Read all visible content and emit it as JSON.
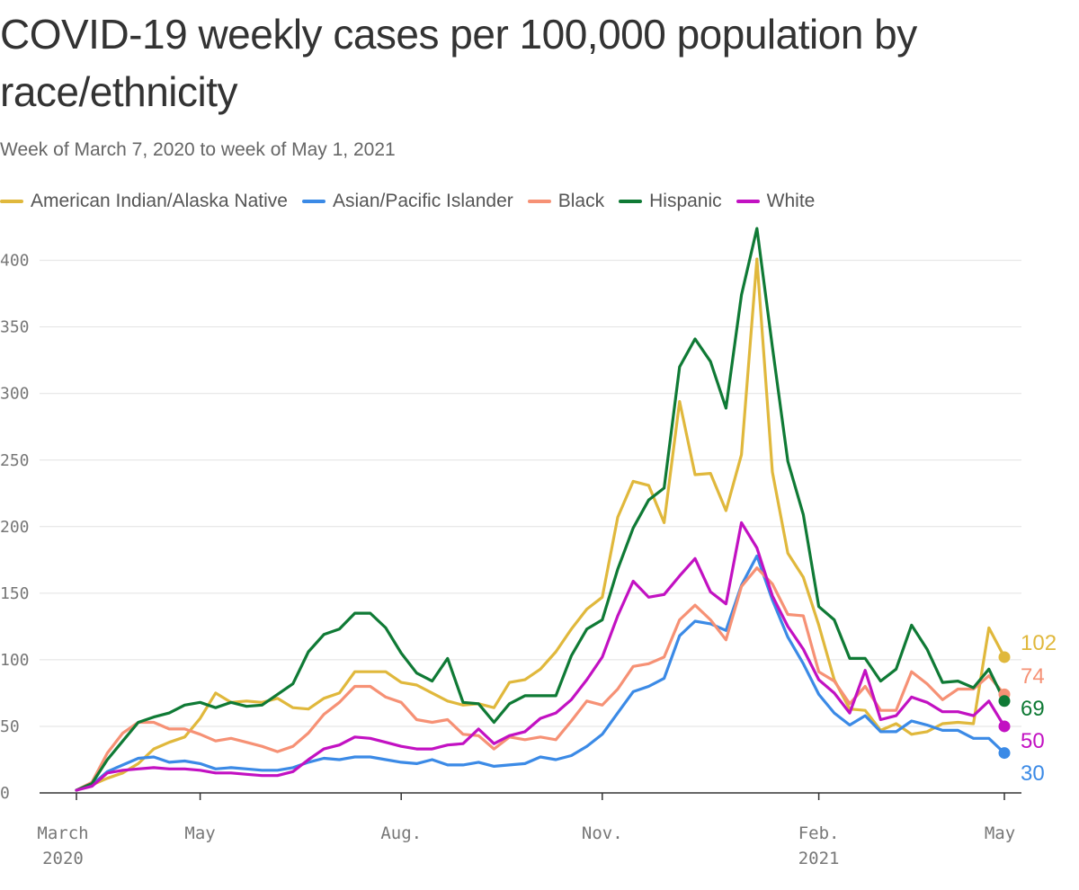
{
  "title": "COVID-19 weekly cases per 100,000 population by race/ethnicity",
  "subtitle": "Week of March 7, 2020 to week of May 1, 2021",
  "chart_data": {
    "type": "line",
    "title": "COVID-19 weekly cases per 100,000 population by race/ethnicity",
    "subtitle": "Week of March 7, 2020 to week of May 1, 2021",
    "xlabel": "",
    "ylabel": "",
    "ylim": [
      0,
      420
    ],
    "grid": true,
    "legend_placement": "top",
    "y_ticks": [
      "0",
      "50",
      "100",
      "150",
      "200",
      "250",
      "300",
      "350",
      "400"
    ],
    "x_ticks": [
      {
        "week": 0,
        "label": "March",
        "sublabel": "2020"
      },
      {
        "week": 8,
        "label": "May",
        "sublabel": ""
      },
      {
        "week": 21,
        "label": "Aug.",
        "sublabel": ""
      },
      {
        "week": 34,
        "label": "Nov.",
        "sublabel": ""
      },
      {
        "week": 48,
        "label": "Feb.",
        "sublabel": "2021"
      },
      {
        "week": 60,
        "label": "May",
        "sublabel": ""
      }
    ],
    "series": [
      {
        "name": "American Indian/Alaska Native",
        "color": "#e0b83c",
        "end_label": "102",
        "values": [
          2,
          6,
          11,
          15,
          22,
          33,
          38,
          42,
          56,
          75,
          68,
          69,
          68,
          71,
          64,
          63,
          71,
          75,
          91,
          91,
          91,
          83,
          81,
          75,
          69,
          66,
          67,
          64,
          83,
          85,
          93,
          106,
          123,
          138,
          147,
          207,
          234,
          231,
          203,
          294,
          239,
          240,
          212,
          254,
          401,
          241,
          180,
          162,
          126,
          85,
          63,
          62,
          47,
          52,
          44,
          46,
          52,
          53,
          52,
          124,
          102
        ]
      },
      {
        "name": "Asian/Pacific Islander",
        "color": "#3b8ae6",
        "end_label": "30",
        "values": [
          2,
          6,
          16,
          21,
          26,
          27,
          23,
          24,
          22,
          18,
          19,
          18,
          17,
          17,
          19,
          23,
          26,
          25,
          27,
          27,
          25,
          23,
          22,
          25,
          21,
          21,
          23,
          20,
          21,
          22,
          27,
          25,
          28,
          35,
          44,
          60,
          76,
          80,
          86,
          118,
          129,
          127,
          122,
          156,
          178,
          145,
          117,
          97,
          74,
          60,
          51,
          58,
          46,
          46,
          54,
          51,
          47,
          47,
          41,
          41,
          30
        ]
      },
      {
        "name": "Black",
        "color": "#f69175",
        "end_label": "74",
        "values": [
          2,
          8,
          30,
          45,
          53,
          53,
          48,
          48,
          44,
          39,
          41,
          38,
          35,
          31,
          35,
          45,
          59,
          68,
          80,
          80,
          72,
          68,
          55,
          53,
          55,
          44,
          43,
          33,
          42,
          40,
          42,
          40,
          54,
          69,
          66,
          78,
          95,
          97,
          102,
          130,
          141,
          130,
          115,
          155,
          169,
          157,
          134,
          133,
          91,
          84,
          67,
          80,
          62,
          62,
          91,
          82,
          70,
          78,
          78,
          88,
          74
        ]
      },
      {
        "name": "Hispanic",
        "color": "#0f7a35",
        "end_label": "69",
        "values": [
          2,
          7,
          25,
          39,
          53,
          57,
          60,
          66,
          68,
          64,
          68,
          65,
          66,
          74,
          82,
          106,
          119,
          123,
          135,
          135,
          124,
          105,
          90,
          84,
          101,
          68,
          67,
          53,
          67,
          73,
          73,
          73,
          103,
          123,
          130,
          168,
          199,
          220,
          229,
          320,
          341,
          324,
          289,
          374,
          424,
          335,
          249,
          209,
          140,
          130,
          101,
          101,
          84,
          93,
          126,
          108,
          83,
          84,
          79,
          93,
          69
        ]
      },
      {
        "name": "White",
        "color": "#c211c2",
        "end_label": "50",
        "values": [
          2,
          5,
          15,
          17,
          18,
          19,
          18,
          18,
          17,
          15,
          15,
          14,
          13,
          13,
          16,
          25,
          33,
          36,
          42,
          41,
          38,
          35,
          33,
          33,
          36,
          37,
          48,
          37,
          43,
          46,
          56,
          60,
          70,
          85,
          102,
          133,
          159,
          147,
          149,
          163,
          176,
          151,
          142,
          203,
          184,
          148,
          125,
          108,
          85,
          75,
          60,
          92,
          55,
          58,
          72,
          68,
          61,
          61,
          58,
          69,
          50
        ]
      }
    ]
  }
}
